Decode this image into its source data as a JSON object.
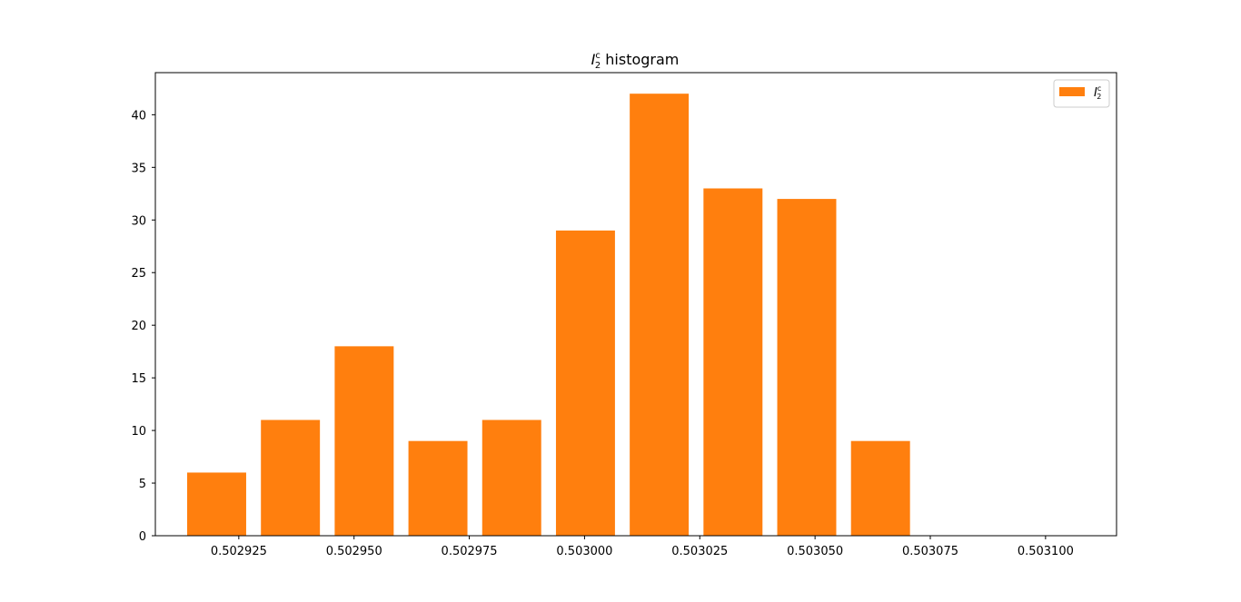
{
  "chart_data": {
    "type": "bar",
    "title_symbol": "I",
    "title_superscript": "c",
    "title_subscript": "2",
    "title_suffix": " histogram",
    "bar_color": "#ff7f0e",
    "legend": {
      "placement": "top-right",
      "symbol": "I",
      "superscript": "c",
      "subscript": "2"
    },
    "bin_width": 1.6e-05,
    "x": [
      0.5029202,
      0.5029362,
      0.5029522,
      0.5029682,
      0.5029842,
      0.5030002,
      0.5030162,
      0.5030322,
      0.5030482,
      0.5030642
    ],
    "values": [
      6,
      11,
      18,
      9,
      11,
      29,
      42,
      33,
      32,
      9
    ],
    "xlim": [
      0.5029069,
      0.5031154
    ],
    "ylim": [
      0,
      44
    ],
    "xticks": [
      0.502925,
      0.50295,
      0.502975,
      0.503,
      0.503025,
      0.50305,
      0.503075,
      0.5031
    ],
    "xtick_labels": [
      "0.502925",
      "0.502950",
      "0.502975",
      "0.503000",
      "0.503025",
      "0.503050",
      "0.503075",
      "0.503100"
    ],
    "yticks": [
      0,
      5,
      10,
      15,
      20,
      25,
      30,
      35,
      40
    ],
    "ytick_labels": [
      "0",
      "5",
      "10",
      "15",
      "20",
      "25",
      "30",
      "35",
      "40"
    ],
    "grid": false
  }
}
